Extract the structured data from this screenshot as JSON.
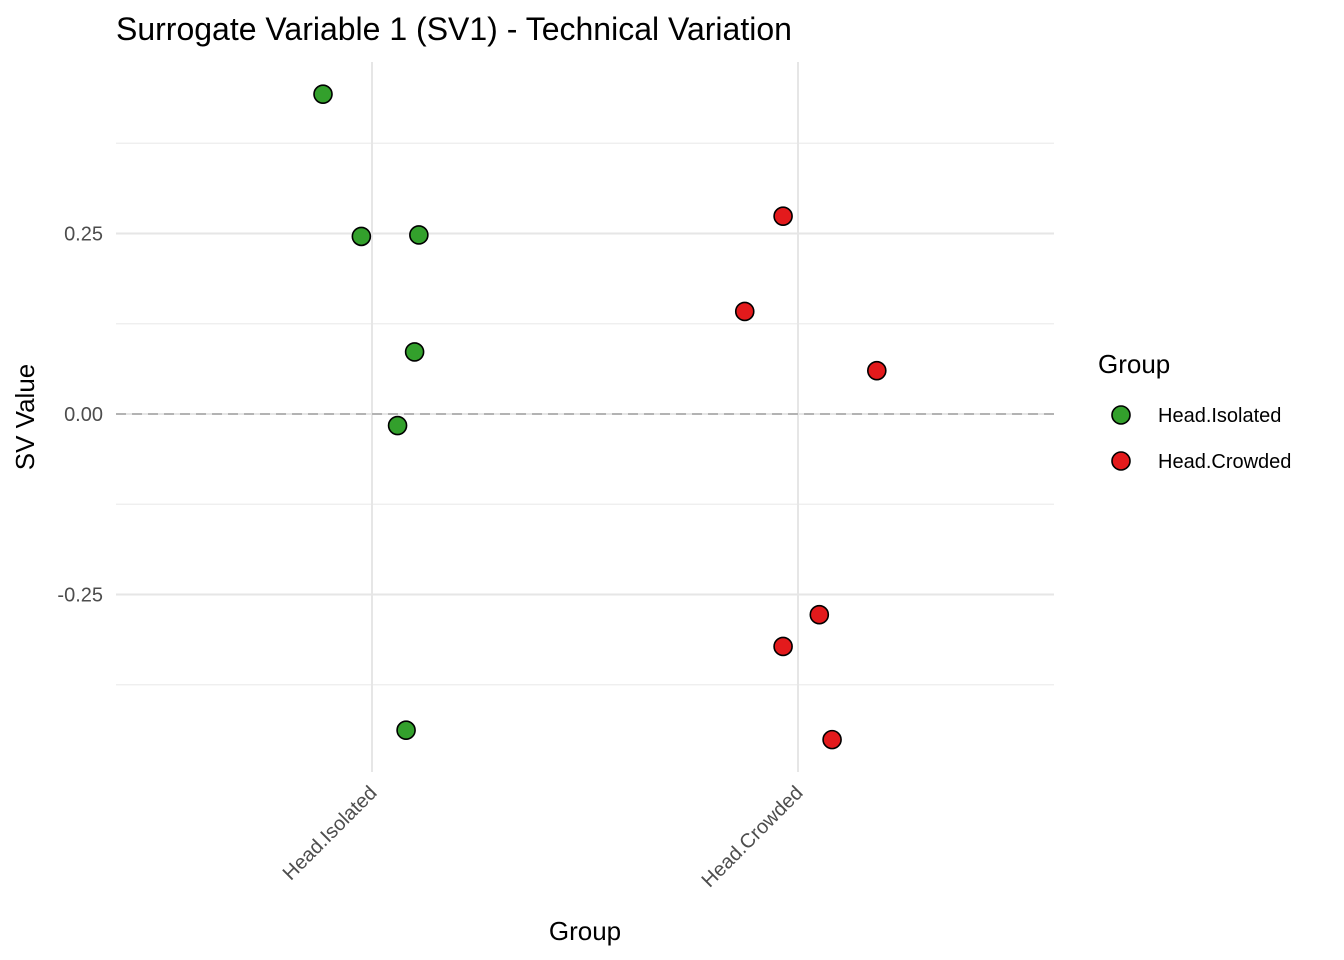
{
  "chart_data": {
    "type": "scatter",
    "title": "Surrogate Variable 1 (SV1) - Technical Variation",
    "xlabel": "Group",
    "ylabel": "SV Value",
    "categories": [
      "Head.Isolated",
      "Head.Crowded"
    ],
    "ylim": [
      -0.5,
      0.49
    ],
    "yticks": [
      0.25,
      0.0,
      -0.25
    ],
    "ytick_labels": [
      "0.25",
      "0.00",
      "-0.25"
    ],
    "reference_line": 0.0,
    "legend": {
      "title": "Group",
      "position": "right",
      "entries": [
        "Head.Isolated",
        "Head.Crowded"
      ]
    },
    "series": [
      {
        "name": "Head.Isolated",
        "color": "#33a02c",
        "points": [
          {
            "jitter": -0.115,
            "y": 0.443
          },
          {
            "jitter": -0.025,
            "y": 0.246
          },
          {
            "jitter": 0.11,
            "y": 0.248
          },
          {
            "jitter": 0.1,
            "y": 0.086
          },
          {
            "jitter": 0.06,
            "y": -0.016
          },
          {
            "jitter": 0.08,
            "y": -0.438
          }
        ]
      },
      {
        "name": "Head.Crowded",
        "color": "#e31a1c",
        "points": [
          {
            "jitter": -0.035,
            "y": 0.274
          },
          {
            "jitter": -0.125,
            "y": 0.142
          },
          {
            "jitter": 0.185,
            "y": 0.06
          },
          {
            "jitter": 0.05,
            "y": -0.278
          },
          {
            "jitter": -0.035,
            "y": -0.322
          },
          {
            "jitter": 0.08,
            "y": -0.451
          }
        ]
      }
    ]
  }
}
